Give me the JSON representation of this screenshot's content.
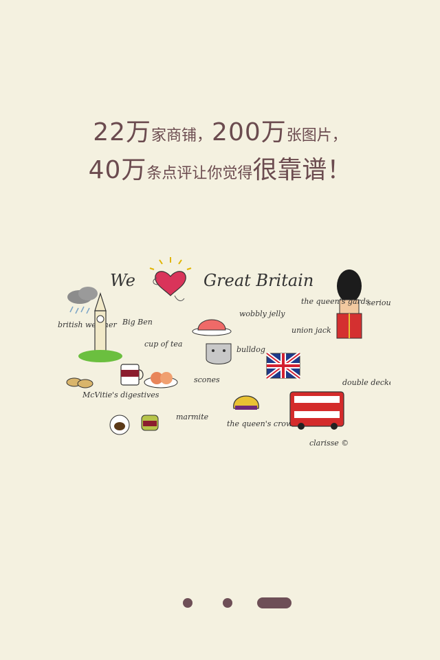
{
  "headline": {
    "line1": {
      "n1": "22万",
      "t1": "家商铺，",
      "n2": "200万",
      "t2": "张图片，"
    },
    "line2": {
      "n1": "40万",
      "t1": "条点评让你觉得",
      "emph": "很靠谱！"
    }
  },
  "illustration": {
    "title_we": "We",
    "title_place": "Great Britain",
    "labels": {
      "big_ben": "Big Ben",
      "weather": "british weather",
      "tea": "cup of tea",
      "biscuits": "McVitie's digestives",
      "scones": "scones",
      "marmite": "marmite",
      "jelly": "wobbly jelly",
      "bulldog": "bulldog",
      "crown": "the queen's crown",
      "guards": "the queen's gards",
      "serious": "serious face",
      "union_jack": "union jack",
      "bus": "double decker",
      "signature": "clarisse ©"
    }
  },
  "pager": {
    "count": 3,
    "active_index": 2
  },
  "colors": {
    "background": "#f4f1e0",
    "text": "#6b4b4f",
    "pager": "#6e4f57"
  }
}
